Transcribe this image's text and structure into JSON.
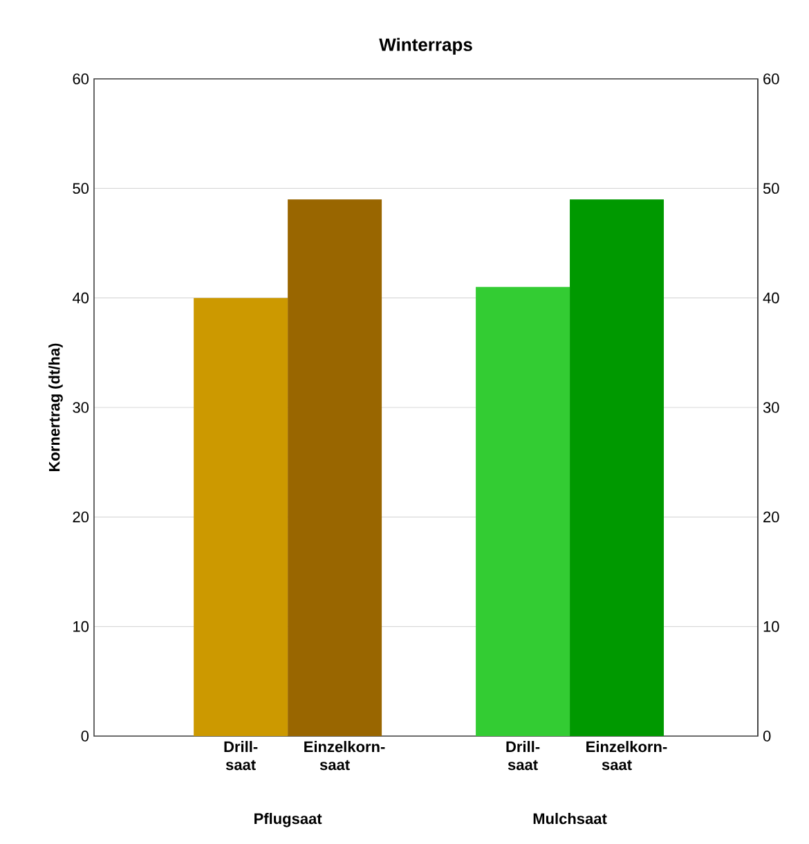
{
  "chart_data": {
    "type": "bar",
    "title": "Winterraps",
    "ylabel": "Kornertrag (dt/ha)",
    "categories": [
      "Drill-saat",
      "Einzelkorn-saat",
      "Drill-saat",
      "Einzelkorn-saat"
    ],
    "values": [
      40,
      49,
      41,
      49
    ],
    "colors": [
      "#cc9900",
      "#996600",
      "#33cc33",
      "#009900"
    ],
    "annotations": [
      "Pflugsaat",
      "Mulchsaat"
    ],
    "ylim": [
      0,
      60
    ],
    "yticks": [
      0,
      10,
      20,
      30,
      40,
      50,
      60
    ],
    "y2lim": [
      0,
      60
    ],
    "y2ticks": [
      0,
      10,
      20,
      30,
      40,
      50,
      60
    ],
    "grid": "y"
  }
}
